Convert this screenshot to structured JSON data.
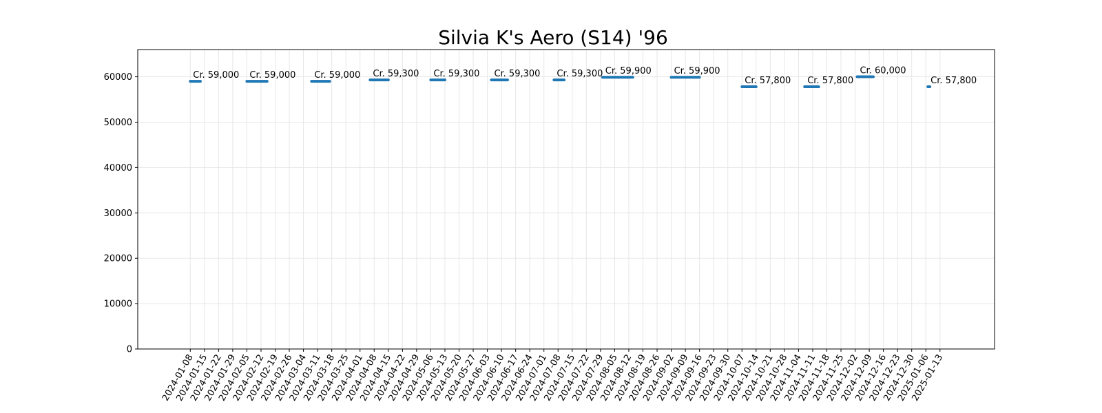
{
  "chart_data": {
    "type": "line",
    "title": "Silvia K's Aero (S14) '96",
    "xlabel": "",
    "ylabel": "",
    "ylim": [
      0,
      66000
    ],
    "yticks": [
      "0",
      "10000",
      "20000",
      "30000",
      "40000",
      "50000",
      "60000"
    ],
    "grid": true,
    "legend": "none",
    "series_color": "#1f77b4",
    "x_ticks": [
      "2024-01-08",
      "2024-01-15",
      "2024-01-22",
      "2024-01-29",
      "2024-02-05",
      "2024-02-12",
      "2024-02-19",
      "2024-02-26",
      "2024-03-04",
      "2024-03-11",
      "2024-03-18",
      "2024-03-25",
      "2024-04-01",
      "2024-04-08",
      "2024-04-15",
      "2024-04-22",
      "2024-04-29",
      "2024-05-06",
      "2024-05-13",
      "2024-05-20",
      "2024-05-27",
      "2024-06-03",
      "2024-06-10",
      "2024-06-17",
      "2024-06-24",
      "2024-07-01",
      "2024-07-08",
      "2024-07-15",
      "2024-07-22",
      "2024-07-29",
      "2024-08-05",
      "2024-08-12",
      "2024-08-19",
      "2024-08-26",
      "2024-09-02",
      "2024-09-09",
      "2024-09-16",
      "2024-09-23",
      "2024-09-30",
      "2024-10-07",
      "2024-10-14",
      "2024-10-21",
      "2024-10-28",
      "2024-11-04",
      "2024-11-11",
      "2024-11-18",
      "2024-11-25",
      "2024-12-02",
      "2024-12-09",
      "2024-12-16",
      "2024-12-23",
      "2024-12-30",
      "2025-01-06",
      "2025-01-13"
    ],
    "x_range": [
      "2023-12-13",
      "2025-02-09"
    ],
    "segments": [
      {
        "start": "2024-01-08",
        "end": "2024-01-13",
        "value": 59000,
        "label": "Cr. 59,000"
      },
      {
        "start": "2024-02-05",
        "end": "2024-02-15",
        "value": 59000,
        "label": "Cr. 59,000"
      },
      {
        "start": "2024-03-08",
        "end": "2024-03-17",
        "value": 59000,
        "label": "Cr. 59,000"
      },
      {
        "start": "2024-04-06",
        "end": "2024-04-15",
        "value": 59300,
        "label": "Cr. 59,300"
      },
      {
        "start": "2024-05-06",
        "end": "2024-05-13",
        "value": 59300,
        "label": "Cr. 59,300"
      },
      {
        "start": "2024-06-05",
        "end": "2024-06-13",
        "value": 59300,
        "label": "Cr. 59,300"
      },
      {
        "start": "2024-07-06",
        "end": "2024-07-11",
        "value": 59300,
        "label": "Cr. 59,300"
      },
      {
        "start": "2024-07-30",
        "end": "2024-08-14",
        "value": 59900,
        "label": "Cr. 59,900"
      },
      {
        "start": "2024-09-02",
        "end": "2024-09-16",
        "value": 59900,
        "label": "Cr. 59,900"
      },
      {
        "start": "2024-10-07",
        "end": "2024-10-14",
        "value": 57800,
        "label": "Cr. 57,800"
      },
      {
        "start": "2024-11-07",
        "end": "2024-11-14",
        "value": 57800,
        "label": "Cr. 57,800"
      },
      {
        "start": "2024-12-03",
        "end": "2024-12-11",
        "value": 60000,
        "label": "Cr. 60,000"
      },
      {
        "start": "2025-01-07",
        "end": "2025-01-08",
        "value": 57800,
        "label": "Cr. 57,800"
      }
    ]
  }
}
